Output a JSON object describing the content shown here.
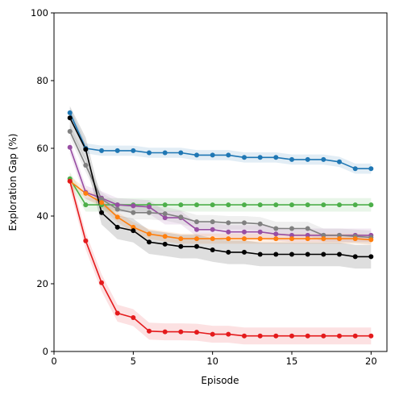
{
  "chart_data": {
    "type": "line",
    "xlabel": "Episode",
    "ylabel": "Exploration Gap (%)",
    "xlim": [
      0,
      21
    ],
    "ylim": [
      0,
      100
    ],
    "xticks": [
      0,
      5,
      10,
      15,
      20
    ],
    "yticks": [
      0,
      20,
      40,
      60,
      80,
      100
    ],
    "grid": false,
    "legend": "none",
    "x": [
      1,
      2,
      3,
      4,
      5,
      6,
      7,
      8,
      9,
      10,
      11,
      12,
      13,
      14,
      15,
      16,
      17,
      18,
      19,
      20
    ],
    "series": [
      {
        "color": "#1f77b4",
        "band": 1.5,
        "values": [
          70.5,
          60.0,
          59.3,
          59.3,
          59.3,
          58.7,
          58.7,
          58.7,
          58.0,
          58.0,
          58.0,
          57.3,
          57.3,
          57.3,
          56.7,
          56.7,
          56.7,
          56.0,
          54.0,
          54.0
        ]
      },
      {
        "color": "#4daf4a",
        "band": 2.0,
        "values": [
          51.0,
          43.3,
          43.3,
          43.3,
          43.3,
          43.3,
          43.3,
          43.3,
          43.3,
          43.3,
          43.3,
          43.3,
          43.3,
          43.3,
          43.3,
          43.3,
          43.3,
          43.3,
          43.3,
          43.3
        ]
      },
      {
        "color": "#984ea3",
        "band": 2.0,
        "values": [
          60.3,
          47.0,
          45.3,
          43.3,
          43.0,
          42.7,
          39.5,
          39.5,
          36.0,
          36.0,
          35.3,
          35.3,
          35.3,
          34.7,
          34.3,
          34.3,
          34.3,
          34.3,
          34.3,
          34.3
        ]
      },
      {
        "color": "#808080",
        "band": 2.0,
        "values": [
          65.0,
          55.0,
          45.0,
          42.0,
          41.0,
          41.0,
          40.7,
          39.7,
          38.3,
          38.3,
          38.0,
          38.0,
          37.7,
          36.3,
          36.3,
          36.3,
          34.3,
          34.3,
          34.0,
          33.7
        ]
      },
      {
        "color": "#ff7f0e",
        "band": 1.5,
        "values": [
          50.3,
          46.7,
          44.0,
          39.7,
          36.7,
          34.7,
          34.0,
          33.3,
          33.3,
          33.3,
          33.3,
          33.3,
          33.3,
          33.3,
          33.3,
          33.3,
          33.3,
          33.3,
          33.3,
          33.0
        ]
      },
      {
        "color": "#000000",
        "band": 3.5,
        "values": [
          69.0,
          59.7,
          41.0,
          36.7,
          35.7,
          32.3,
          31.7,
          31.0,
          31.0,
          30.0,
          29.3,
          29.3,
          28.7,
          28.7,
          28.7,
          28.7,
          28.7,
          28.7,
          28.0,
          28.0
        ]
      },
      {
        "color": "#e41a1c",
        "band": 2.5,
        "values": [
          50.3,
          32.7,
          20.3,
          11.3,
          10.0,
          6.0,
          5.8,
          5.8,
          5.7,
          5.1,
          5.1,
          4.6,
          4.6,
          4.6,
          4.6,
          4.6,
          4.6,
          4.6,
          4.6,
          4.6
        ]
      }
    ]
  }
}
